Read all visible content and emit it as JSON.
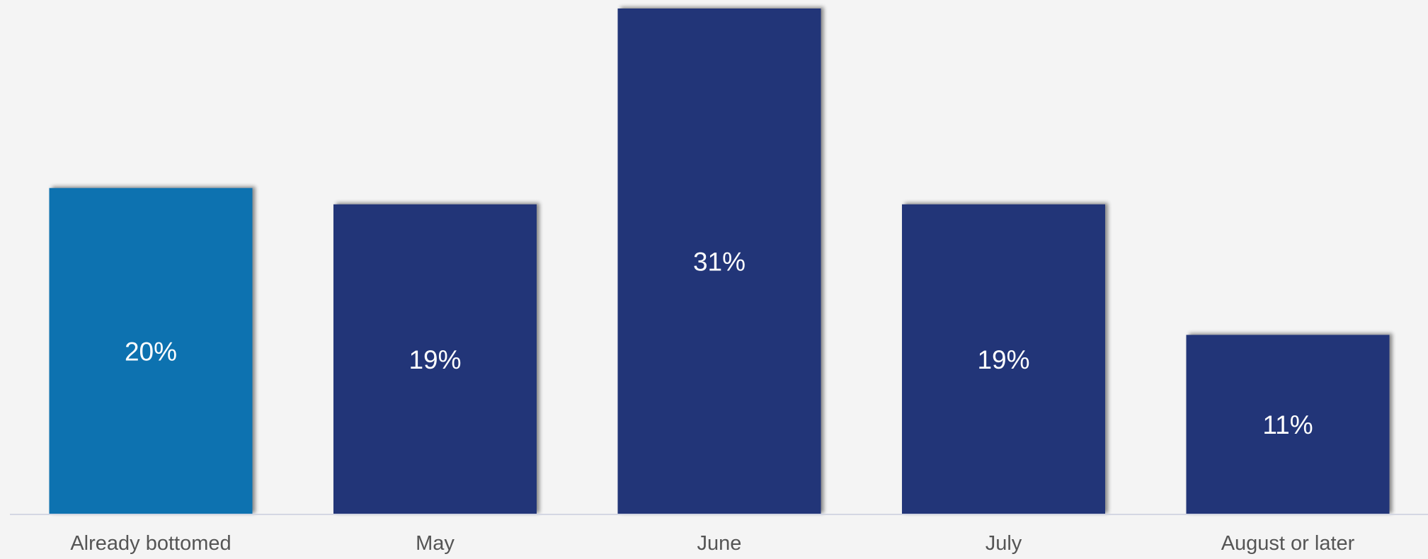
{
  "chart_data": {
    "type": "bar",
    "title": "",
    "xlabel": "",
    "ylabel": "",
    "categories": [
      "Already bottomed",
      "May",
      "June",
      "July",
      "August or later"
    ],
    "values": [
      20,
      19,
      31,
      19,
      11
    ],
    "data_labels": [
      "20%",
      "19%",
      "31%",
      "19%",
      "11%"
    ],
    "ylim": [
      0,
      31
    ],
    "grid": false,
    "legend": "none",
    "colors": {
      "highlight": "#1072b0",
      "default": "#213478",
      "label_text": "#ffffff",
      "tick_text": "#555555",
      "axis_line": "#d4d7e3",
      "background": "#f4f4f4"
    },
    "highlight_index": 0
  }
}
